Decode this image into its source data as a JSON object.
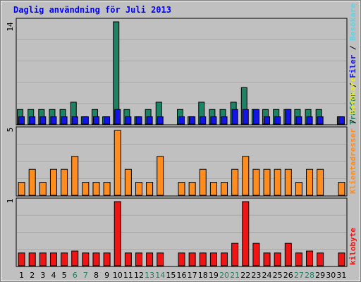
{
  "chart_data": {
    "type": "bar",
    "title": "Daglig användning för Juli 2013",
    "categories": [
      "1",
      "2",
      "3",
      "4",
      "5",
      "6",
      "7",
      "8",
      "9",
      "10",
      "11",
      "12",
      "13",
      "14",
      "15",
      "16",
      "17",
      "18",
      "19",
      "20",
      "21",
      "22",
      "23",
      "24",
      "25",
      "26",
      "27",
      "28",
      "29",
      "30",
      "31"
    ],
    "weekend_days": [
      "6",
      "7",
      "13",
      "14",
      "20",
      "21",
      "27",
      "28"
    ],
    "panels": [
      {
        "id": "top",
        "ymax_label": "14",
        "ylim": [
          0,
          14
        ],
        "series": [
          {
            "name": "Träffar",
            "color": "#1e8264",
            "values": [
              2,
              2,
              2,
              2,
              2,
              3,
              1,
              2,
              1,
              14,
              2,
              1,
              2,
              3,
              0,
              2,
              1,
              3,
              2,
              2,
              3,
              5,
              2,
              2,
              2,
              2,
              2,
              2,
              2,
              0,
              1
            ]
          },
          {
            "name": "Filer",
            "color": "#1414e6",
            "values": [
              1,
              1,
              1,
              1,
              1,
              1,
              1,
              1,
              1,
              2,
              1,
              1,
              1,
              1,
              0,
              1,
              1,
              1,
              1,
              1,
              2,
              2,
              2,
              1,
              1,
              2,
              1,
              1,
              1,
              0,
              1
            ]
          },
          {
            "name": "Besökare",
            "color": "#5fd2e6",
            "values": []
          }
        ]
      },
      {
        "id": "middle",
        "ymax_label": "5",
        "ylim": [
          0,
          5
        ],
        "series": [
          {
            "name": "Klientadresser",
            "color": "#ff8c1e",
            "values": [
              1,
              2,
              1,
              2,
              2,
              3,
              1,
              1,
              1,
              5,
              2,
              1,
              1,
              3,
              0,
              1,
              1,
              2,
              1,
              1,
              2,
              3,
              2,
              2,
              2,
              2,
              1,
              2,
              2,
              0,
              1
            ]
          },
          {
            "name": "Besökare",
            "color": "#e6e63c",
            "values": []
          }
        ]
      },
      {
        "id": "bottom",
        "ymax_label": "1",
        "ylim": [
          0,
          1
        ],
        "series": [
          {
            "name": "kilobyte",
            "color": "#f01414",
            "values": [
              0.2,
              0.2,
              0.2,
              0.2,
              0.2,
              0.23,
              0.2,
              0.2,
              0.2,
              1.0,
              0.2,
              0.2,
              0.2,
              0.2,
              0,
              0.2,
              0.2,
              0.2,
              0.2,
              0.2,
              0.35,
              1.0,
              0.35,
              0.2,
              0.2,
              0.35,
              0.2,
              0.23,
              0.2,
              0,
              0.2
            ]
          }
        ]
      }
    ],
    "legend_right": [
      {
        "text": "Träffar",
        "color": "#1e8264"
      },
      {
        "text": " / ",
        "color": "#000000"
      },
      {
        "text": "Filer",
        "color": "#1414e6"
      },
      {
        "text": " / ",
        "color": "#000000"
      },
      {
        "text": "Besökare",
        "color": "#5fd2e6"
      },
      {
        "text": " / ",
        "color": "#000000"
      },
      {
        "text": "Besökare",
        "color": "#e6e63c"
      },
      {
        "text": " / ",
        "color": "#000000"
      },
      {
        "text": "Klientadresser",
        "color": "#ff8c1e"
      },
      {
        "text": "kilobyte",
        "color": "#f01414"
      }
    ]
  },
  "colors": {
    "background": "#c0c0c0",
    "title": "#0000ff",
    "weekday_label": "#000000",
    "weekend_label": "#1e8264"
  }
}
